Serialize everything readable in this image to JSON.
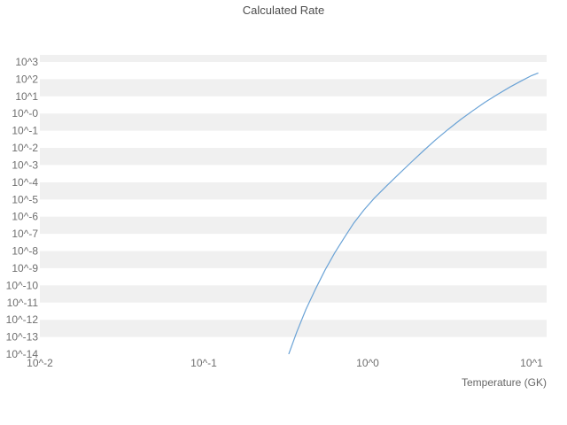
{
  "chart_data": {
    "type": "line",
    "title": "Calculated Rate",
    "xlabel": "Temperature (GK)",
    "ylabel": "",
    "x_scale": "log",
    "y_scale": "log",
    "grid": "alternating horizontal bands",
    "legend": "none",
    "line_color": "#6ba3d6",
    "band_color": "#f0f0f0",
    "xlim_log10": [
      -2,
      1.092
    ],
    "ylim_log10": [
      -14,
      3.41
    ],
    "x_ticks": [
      {
        "label": "10^-2",
        "value": 0.01
      },
      {
        "label": "10^-1",
        "value": 0.1
      },
      {
        "label": "10^0",
        "value": 1
      },
      {
        "label": "10^1",
        "value": 10
      }
    ],
    "y_ticks": [
      {
        "label": "10^3",
        "exponent": 3
      },
      {
        "label": "10^2",
        "exponent": 2
      },
      {
        "label": "10^1",
        "exponent": 1
      },
      {
        "label": "10^-0",
        "exponent": 0
      },
      {
        "label": "10^-1",
        "exponent": -1
      },
      {
        "label": "10^-2",
        "exponent": -2
      },
      {
        "label": "10^-3",
        "exponent": -3
      },
      {
        "label": "10^-4",
        "exponent": -4
      },
      {
        "label": "10^-5",
        "exponent": -5
      },
      {
        "label": "10^-6",
        "exponent": -6
      },
      {
        "label": "10^-7",
        "exponent": -7
      },
      {
        "label": "10^-8",
        "exponent": -8
      },
      {
        "label": "10^-9",
        "exponent": -9
      },
      {
        "label": "10^-10",
        "exponent": -10
      },
      {
        "label": "10^-11",
        "exponent": -11
      },
      {
        "label": "10^-12",
        "exponent": -12
      },
      {
        "label": "10^-13",
        "exponent": -13
      },
      {
        "label": "10^-14",
        "exponent": -14
      }
    ],
    "series": [
      {
        "name": "calculated-rate",
        "points": [
          [
            0.33,
            1e-14
          ],
          [
            0.37,
            2e-13
          ],
          [
            0.42,
            4e-12
          ],
          [
            0.48,
            6e-11
          ],
          [
            0.55,
            8e-10
          ],
          [
            0.63,
            8e-09
          ],
          [
            0.72,
            6e-08
          ],
          [
            0.82,
            4e-07
          ],
          [
            0.95,
            2.5e-06
          ],
          [
            1.1,
            1.2e-05
          ],
          [
            1.3,
            6e-05
          ],
          [
            1.55,
            0.0003
          ],
          [
            1.85,
            0.0015
          ],
          [
            2.2,
            0.007
          ],
          [
            2.6,
            0.03
          ],
          [
            3.1,
            0.12
          ],
          [
            3.7,
            0.45
          ],
          [
            4.4,
            1.5
          ],
          [
            5.2,
            4.5
          ],
          [
            6.2,
            13
          ],
          [
            7.4,
            35
          ],
          [
            8.8,
            85
          ],
          [
            10.0,
            160
          ],
          [
            11.0,
            230
          ]
        ]
      }
    ]
  }
}
